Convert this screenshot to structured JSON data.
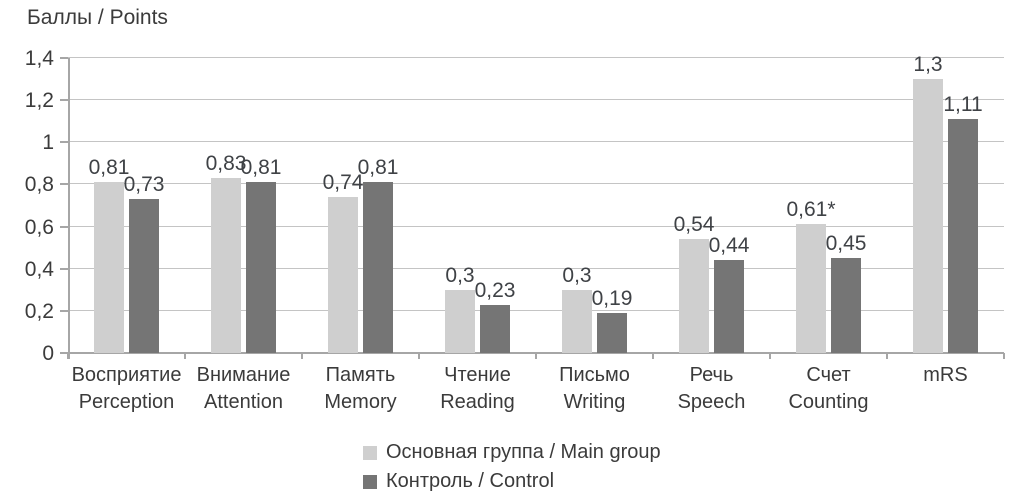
{
  "chart_data": {
    "type": "bar",
    "title": "Баллы / Points",
    "categories_ru": [
      "Восприятие",
      "Внимание",
      "Память",
      "Чтение",
      "Письмо",
      "Речь",
      "Счет",
      "mRS"
    ],
    "categories_en": [
      "Perception",
      "Attention",
      "Memory",
      "Reading",
      "Writing",
      "Speech",
      "Counting",
      ""
    ],
    "series": [
      {
        "name": "Основная группа / Main group",
        "color": "#cfcfcf",
        "values": [
          0.81,
          0.83,
          0.74,
          0.3,
          0.3,
          0.54,
          0.61,
          1.3
        ],
        "value_labels": [
          "0,81",
          "0,83",
          "0,74",
          "0,3",
          "0,3",
          "0,54",
          "0,61*",
          "1,3"
        ]
      },
      {
        "name": "Контроль / Control",
        "color": "#757575",
        "values": [
          0.73,
          0.81,
          0.81,
          0.23,
          0.19,
          0.44,
          0.45,
          1.11
        ],
        "value_labels": [
          "0,73",
          "0,81",
          "0,81",
          "0,23",
          "0,19",
          "0,44",
          "0,45",
          "1,11"
        ]
      }
    ],
    "y_ticks": [
      0,
      0.2,
      0.4,
      0.6,
      0.8,
      1,
      1.2,
      1.4
    ],
    "y_tick_labels": [
      "0",
      "0,2",
      "0,4",
      "0,6",
      "0,8",
      "1",
      "1,2",
      "1,4"
    ],
    "ylim": [
      0,
      1.4
    ],
    "grid": true,
    "legend_position": "bottom-center",
    "colors": {
      "grid": "#c4c4c4",
      "axis": "#a6a6a6",
      "text": "#3b3b3b"
    }
  }
}
